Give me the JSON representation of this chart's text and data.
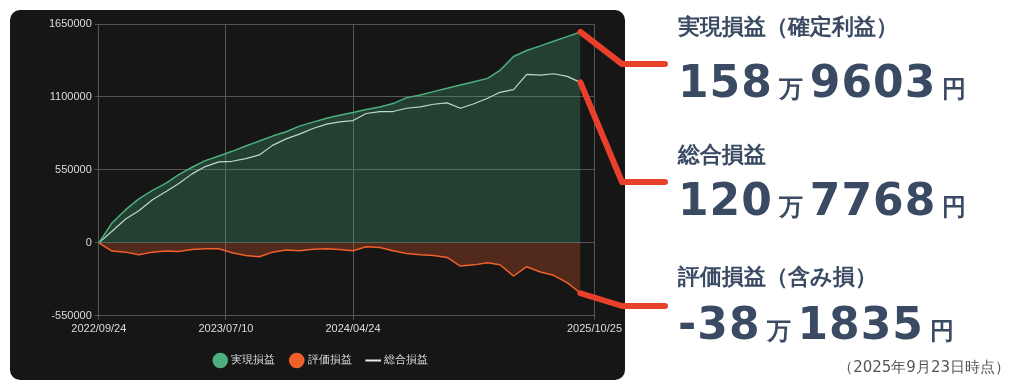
{
  "chart_data": {
    "type": "area",
    "x": [
      "2022-09-24",
      "2022-10-24",
      "2022-11-24",
      "2022-12-24",
      "2023-01-24",
      "2023-02-24",
      "2023-03-24",
      "2023-04-24",
      "2023-05-24",
      "2023-06-24",
      "2023-07-24",
      "2023-08-24",
      "2023-09-24",
      "2023-10-24",
      "2023-11-24",
      "2023-12-24",
      "2024-01-24",
      "2024-02-24",
      "2024-03-24",
      "2024-04-24",
      "2024-05-24",
      "2024-06-24",
      "2024-07-24",
      "2024-08-24",
      "2024-09-24",
      "2024-10-24",
      "2024-11-24",
      "2024-12-24",
      "2025-01-24",
      "2025-02-24",
      "2025-03-24",
      "2025-04-24",
      "2025-05-24",
      "2025-06-24",
      "2025-07-24",
      "2025-08-24",
      "2025-09-23"
    ],
    "series": [
      {
        "name": "実現損益",
        "color": "#4caf7d",
        "values": [
          0,
          150000,
          250000,
          332000,
          395000,
          450000,
          512000,
          570000,
          620000,
          655000,
          690000,
          730000,
          768000,
          805000,
          838000,
          880000,
          910000,
          940000,
          962000,
          982000,
          1005000,
          1025000,
          1050000,
          1095000,
          1115000,
          1140000,
          1165000,
          1190000,
          1215000,
          1240000,
          1300000,
          1405000,
          1450000,
          1485000,
          1520000,
          1555000,
          1590000
        ]
      },
      {
        "name": "評価損益",
        "color": "#f0602a",
        "values": [
          0,
          -62000,
          -70000,
          -90000,
          -70000,
          -62000,
          -66000,
          -50000,
          -45000,
          -45000,
          -75000,
          -95000,
          -105000,
          -70000,
          -54000,
          -60000,
          -48000,
          -45000,
          -50000,
          -60000,
          -30000,
          -35000,
          -60000,
          -80000,
          -90000,
          -95000,
          -110000,
          -175000,
          -166000,
          -150000,
          -165000,
          -250000,
          -180000,
          -220000,
          -245000,
          -300000,
          -380000
        ]
      },
      {
        "name": "総合損益",
        "color": "#e8e8e8",
        "type": "line",
        "values": [
          0,
          88000,
          180000,
          242000,
          325000,
          388000,
          446000,
          520000,
          575000,
          610000,
          615000,
          635000,
          663000,
          735000,
          784000,
          820000,
          862000,
          895000,
          912000,
          922000,
          975000,
          990000,
          990000,
          1015000,
          1025000,
          1045000,
          1055000,
          1015000,
          1049000,
          1090000,
          1135000,
          1155000,
          1270000,
          1265000,
          1275000,
          1255000,
          1210000
        ]
      }
    ],
    "xlim": [
      "2022-09-24",
      "2025-10-25"
    ],
    "xticks": [
      {
        "value": "2022-09-24",
        "label": "2022/09/24"
      },
      {
        "value": "2023-07-10",
        "label": "2023/07/10"
      },
      {
        "value": "2024-04-24",
        "label": "2024/04/24"
      },
      {
        "value": "2025-10-25",
        "label": "2025/10/25"
      }
    ],
    "ylim": [
      -550000,
      1650000
    ],
    "yticks": [
      -550000,
      0,
      550000,
      1100000,
      1650000
    ],
    "grid": true,
    "legend": "bottom",
    "marker": "none",
    "annotations": [
      {
        "text": "実現損益（確定利益）",
        "x": "2025-09-23",
        "y": 1590000
      },
      "158万9603円",
      {
        "text": "総合損益",
        "x": "2025-09-23",
        "y": 1210000
      },
      "120万7768円",
      {
        "text": "評価損益（含み損）",
        "x": "2025-09-23",
        "y": -380000
      },
      "-38万1835円",
      "（2025年9月23日時点）"
    ]
  }
}
